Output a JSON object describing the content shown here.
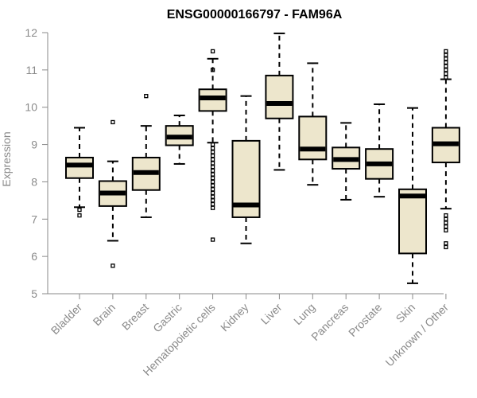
{
  "chart_data": {
    "type": "boxplot",
    "title": "ENSG00000166797 - FAM96A",
    "xlabel": "",
    "ylabel": "Expression",
    "ylim": [
      5,
      12
    ],
    "yticks": [
      5,
      6,
      7,
      8,
      9,
      10,
      11,
      12
    ],
    "categories": [
      "Bladder",
      "Brain",
      "Breast",
      "Gastric",
      "Hematopoietic cells",
      "Kidney",
      "Liver",
      "Lung",
      "Pancreas",
      "Prostate",
      "Skin",
      "Unknown / Other"
    ],
    "boxes": [
      {
        "min": 7.32,
        "q1": 8.1,
        "median": 8.45,
        "q3": 8.65,
        "max": 9.45,
        "outliers": [
          7.25,
          7.1
        ]
      },
      {
        "min": 6.42,
        "q1": 7.35,
        "median": 7.7,
        "q3": 8.02,
        "max": 8.55,
        "outliers": [
          9.6,
          5.75
        ]
      },
      {
        "min": 7.05,
        "q1": 7.78,
        "median": 8.25,
        "q3": 8.65,
        "max": 9.5,
        "outliers": [
          10.3
        ]
      },
      {
        "min": 8.48,
        "q1": 8.98,
        "median": 9.2,
        "q3": 9.5,
        "max": 9.78,
        "outliers": []
      },
      {
        "min": 9.05,
        "q1": 9.9,
        "median": 10.25,
        "q3": 10.48,
        "max": 11.3,
        "outliers": [
          11.5,
          11.0,
          9.0,
          8.9,
          8.8,
          8.7,
          8.6,
          8.5,
          8.4,
          8.3,
          8.2,
          8.1,
          8.0,
          7.9,
          7.8,
          7.7,
          7.6,
          7.5,
          7.4,
          7.3,
          6.45
        ]
      },
      {
        "min": 6.35,
        "q1": 7.05,
        "median": 7.38,
        "q3": 9.1,
        "max": 10.3,
        "outliers": []
      },
      {
        "min": 8.32,
        "q1": 9.7,
        "median": 10.1,
        "q3": 10.85,
        "max": 11.98,
        "outliers": []
      },
      {
        "min": 7.92,
        "q1": 8.6,
        "median": 8.88,
        "q3": 9.75,
        "max": 11.18,
        "outliers": []
      },
      {
        "min": 7.52,
        "q1": 8.35,
        "median": 8.6,
        "q3": 8.92,
        "max": 9.58,
        "outliers": []
      },
      {
        "min": 7.6,
        "q1": 8.08,
        "median": 8.48,
        "q3": 8.88,
        "max": 10.08,
        "outliers": []
      },
      {
        "min": 5.28,
        "q1": 6.08,
        "median": 7.62,
        "q3": 7.8,
        "max": 9.98,
        "outliers": []
      },
      {
        "min": 7.28,
        "q1": 8.52,
        "median": 9.02,
        "q3": 9.45,
        "max": 10.75,
        "outliers": [
          11.5,
          11.4,
          11.3,
          11.2,
          11.1,
          11.0,
          10.9,
          10.8,
          7.1,
          7.0,
          6.9,
          6.8,
          6.7,
          6.35,
          6.25
        ]
      }
    ]
  }
}
